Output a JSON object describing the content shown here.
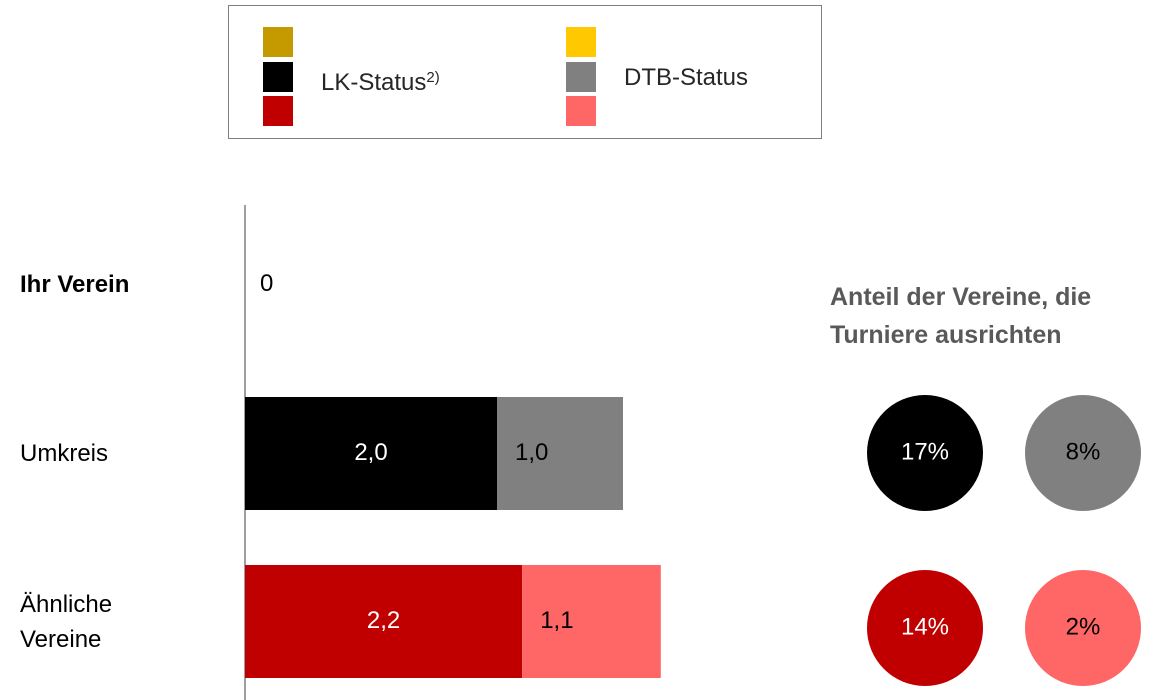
{
  "chart_data": [
    {
      "type": "stacked-barh",
      "categories": [
        "Ihr Verein",
        "Umkreis",
        "Ähnliche Vereine"
      ],
      "series": [
        {
          "name": "LK-Status",
          "footnote": "2)",
          "colors": [
            "#c49a00",
            "#000000",
            "#c00000"
          ],
          "values": [
            0,
            2.0,
            2.2
          ],
          "value_labels": [
            "0",
            "2,0",
            "2,2"
          ]
        },
        {
          "name": "DTB-Status",
          "colors": [
            "#ffc800",
            "#808080",
            "#ff6666"
          ],
          "values": [
            0,
            1.0,
            1.1
          ],
          "value_labels": [
            null,
            "1,0",
            "1,1"
          ]
        }
      ],
      "xlim": [
        0,
        4
      ]
    },
    {
      "type": "dot",
      "title": "Anteil der Vereine, die Turniere ausrichten",
      "values": [
        17,
        8,
        14,
        2
      ],
      "value_labels": [
        "17%",
        "8%",
        "14%",
        "2%"
      ],
      "colors": [
        "#000000",
        "#808080",
        "#c00000",
        "#ff6666"
      ]
    }
  ]
}
